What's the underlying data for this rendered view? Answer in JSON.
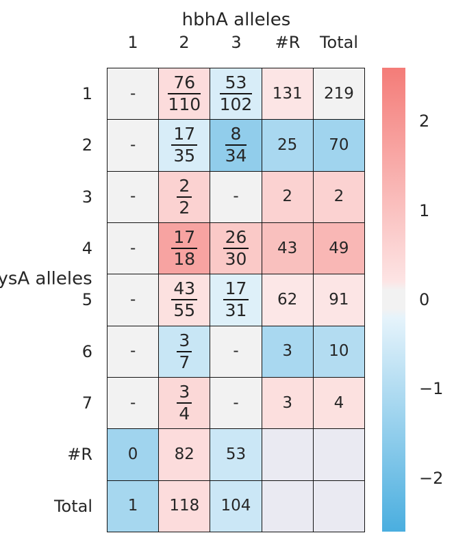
{
  "chart_data": {
    "type": "heatmap",
    "title": "hbhA alleles",
    "ylabel": "lysA alleles",
    "columns": [
      "1",
      "2",
      "3",
      "#R",
      "Total"
    ],
    "rows": [
      "1",
      "2",
      "3",
      "4",
      "5",
      "6",
      "7",
      "#R",
      "Total"
    ],
    "cells": [
      [
        {
          "text": "-"
        },
        {
          "num": "76",
          "den": "110"
        },
        {
          "num": "53",
          "den": "102"
        },
        {
          "text": "131"
        },
        {
          "text": "219"
        }
      ],
      [
        {
          "text": "-"
        },
        {
          "num": "17",
          "den": "35"
        },
        {
          "num": "8",
          "den": "34"
        },
        {
          "text": "25"
        },
        {
          "text": "70"
        }
      ],
      [
        {
          "text": "-"
        },
        {
          "num": "2",
          "den": "2"
        },
        {
          "text": "-"
        },
        {
          "text": "2"
        },
        {
          "text": "2"
        }
      ],
      [
        {
          "text": "-"
        },
        {
          "num": "17",
          "den": "18"
        },
        {
          "num": "26",
          "den": "30"
        },
        {
          "text": "43"
        },
        {
          "text": "49"
        }
      ],
      [
        {
          "text": "-"
        },
        {
          "num": "43",
          "den": "55"
        },
        {
          "num": "17",
          "den": "31"
        },
        {
          "text": "62"
        },
        {
          "text": "91"
        }
      ],
      [
        {
          "text": "-"
        },
        {
          "num": "3",
          "den": "7"
        },
        {
          "text": "-"
        },
        {
          "text": "3"
        },
        {
          "text": "10"
        }
      ],
      [
        {
          "text": "-"
        },
        {
          "num": "3",
          "den": "4"
        },
        {
          "text": "-"
        },
        {
          "text": "3"
        },
        {
          "text": "4"
        }
      ],
      [
        {
          "text": "0"
        },
        {
          "text": "82"
        },
        {
          "text": "53"
        },
        {
          "text": ""
        },
        {
          "text": ""
        }
      ],
      [
        {
          "text": "1"
        },
        {
          "text": "118"
        },
        {
          "text": "104"
        },
        {
          "text": ""
        },
        {
          "text": ""
        }
      ]
    ],
    "color_values": [
      [
        null,
        0.4,
        -0.3,
        0.2,
        0.0
      ],
      [
        null,
        -0.3,
        -1.45,
        -1.05,
        -1.2
      ],
      [
        null,
        0.65,
        null,
        0.65,
        0.65
      ],
      [
        null,
        1.7,
        0.85,
        1.05,
        1.25
      ],
      [
        null,
        0.3,
        -0.2,
        0.15,
        0.2
      ],
      [
        null,
        -0.55,
        null,
        -1.05,
        -0.9
      ],
      [
        null,
        0.5,
        null,
        0.35,
        0.3
      ],
      [
        -1.2,
        0.4,
        -0.5,
        null,
        null
      ],
      [
        -1.1,
        0.4,
        -0.5,
        null,
        null
      ]
    ],
    "colorbar": {
      "range": [
        -2.6,
        2.6
      ],
      "ticks": [
        2,
        1,
        0,
        -1,
        -2
      ],
      "tick_labels": [
        "2",
        "1",
        "0",
        "−1",
        "−2"
      ]
    },
    "grid": true,
    "legend": "colorbar-right"
  },
  "colors": {
    "positive": "#f47c78",
    "neutral": "#f2f2f2",
    "negative": "#4aaedf",
    "na_structural": "#f2f2f2",
    "na_blank": "#eaeaf2",
    "border": "#111111"
  }
}
